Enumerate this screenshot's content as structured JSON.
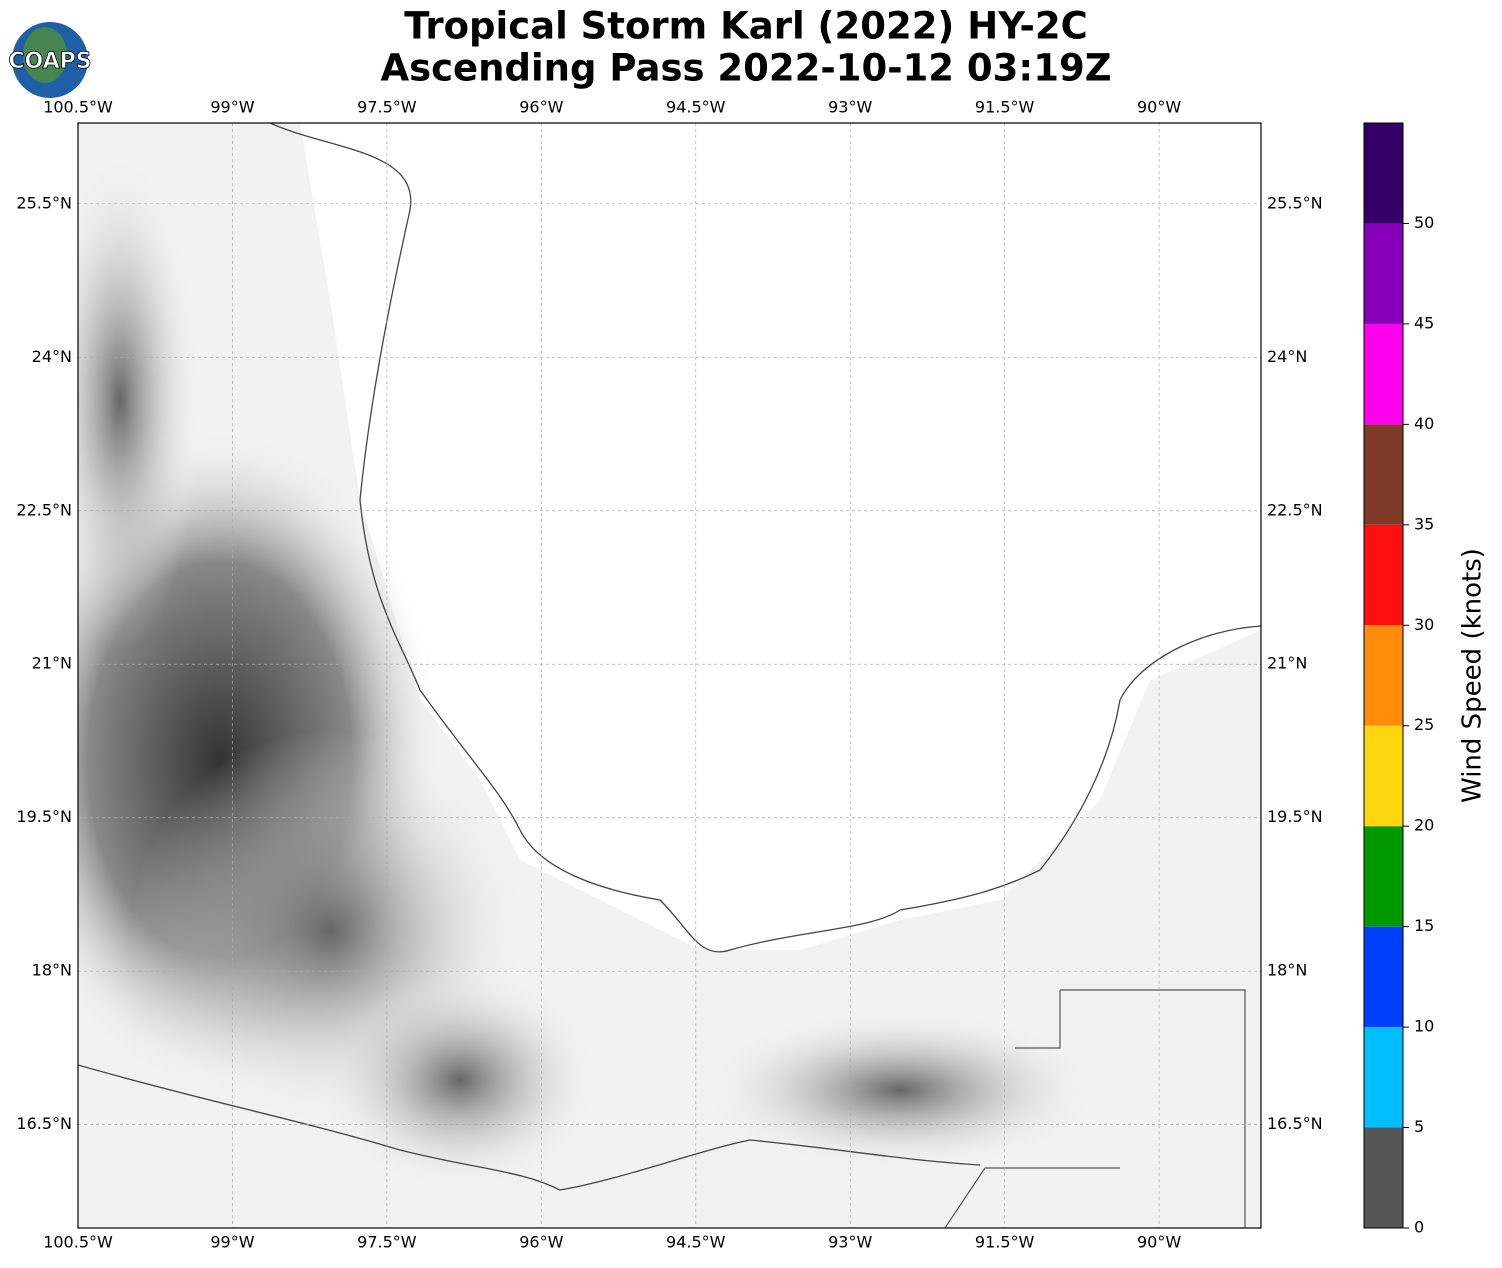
{
  "logo": "COAPS",
  "chart_data": {
    "type": "map",
    "title": [
      "Tropical Storm Karl (2022) HY-2C",
      "Ascending Pass 2022-10-12 03:19Z"
    ],
    "xlim": [
      -100.5,
      -89.01
    ],
    "ylim": [
      15.49,
      26.29
    ],
    "xticks": [
      {
        "value": -100.5,
        "label": "100.5°W"
      },
      {
        "value": -99,
        "label": "99°W"
      },
      {
        "value": -97.5,
        "label": "97.5°W"
      },
      {
        "value": -96,
        "label": "96°W"
      },
      {
        "value": -94.5,
        "label": "94.5°W"
      },
      {
        "value": -93,
        "label": "93°W"
      },
      {
        "value": -91.5,
        "label": "91.5°W"
      },
      {
        "value": -90,
        "label": "90°W"
      }
    ],
    "yticks": [
      {
        "value": 25.5,
        "label": "25.5°N"
      },
      {
        "value": 24,
        "label": "24°N"
      },
      {
        "value": 22.5,
        "label": "22.5°N"
      },
      {
        "value": 21,
        "label": "21°N"
      },
      {
        "value": 19.5,
        "label": "19.5°N"
      },
      {
        "value": 18,
        "label": "18°N"
      },
      {
        "value": 16.5,
        "label": "16.5°N"
      }
    ],
    "grid": true,
    "colorbar": {
      "label": "Wind Speed (knots)",
      "clim": [
        0,
        55
      ],
      "ticks": [
        0,
        5,
        10,
        15,
        20,
        25,
        30,
        35,
        40,
        45,
        50
      ],
      "colors": [
        "#555555",
        "#00bfff",
        "#0040ff",
        "#009900",
        "#ffd710",
        "#ff8c0a",
        "#ff1010",
        "#7f3a28",
        "#ff00ee",
        "#8800bb",
        "#330066"
      ]
    }
  }
}
